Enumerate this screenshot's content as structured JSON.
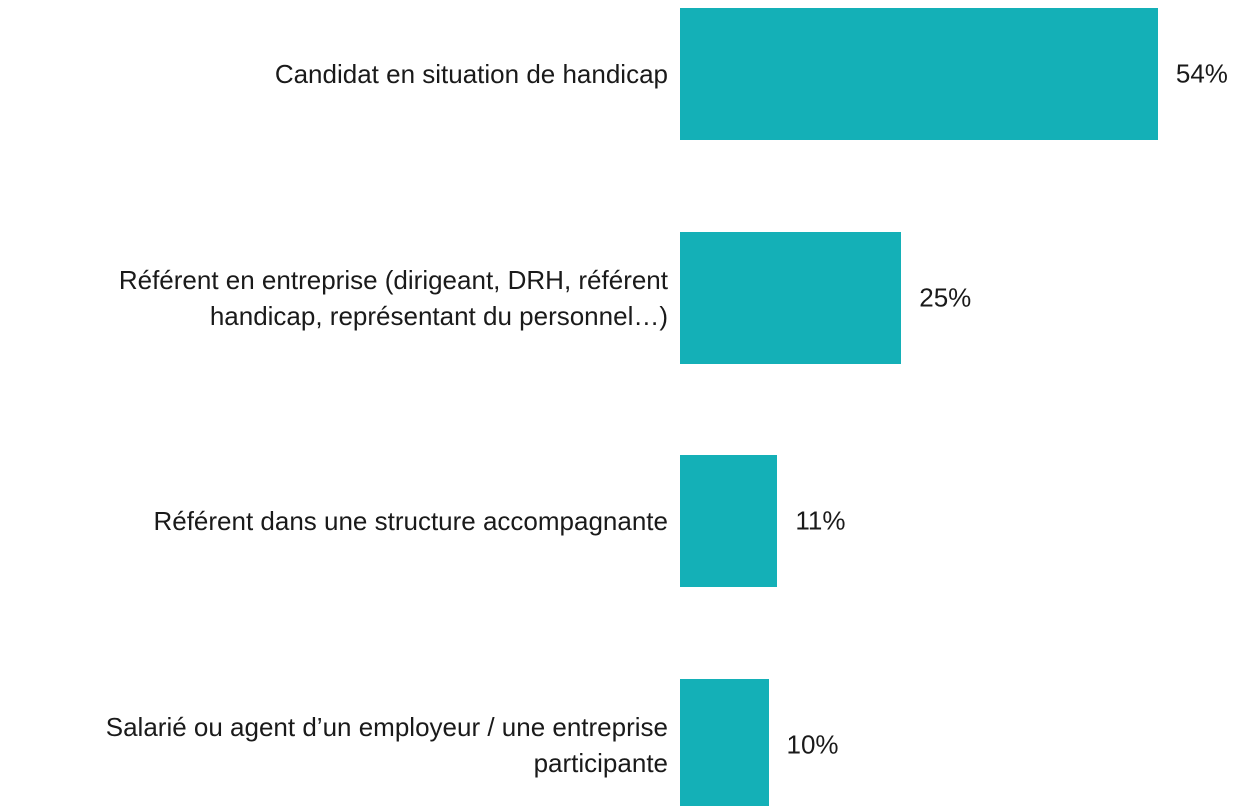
{
  "chart_data": {
    "type": "bar",
    "orientation": "horizontal",
    "categories": [
      "Candidat en situation de handicap",
      "Référent en entreprise (dirigeant, DRH, référent\nhandicap, représentant du personnel…)",
      "Référent dans une structure accompagnante",
      "Salarié ou agent d’un employeur / une entreprise\nparticipante"
    ],
    "values": [
      54,
      25,
      11,
      10
    ],
    "value_labels": [
      "54%",
      "25%",
      "11%",
      "10%"
    ],
    "color": "#14b0b7"
  }
}
